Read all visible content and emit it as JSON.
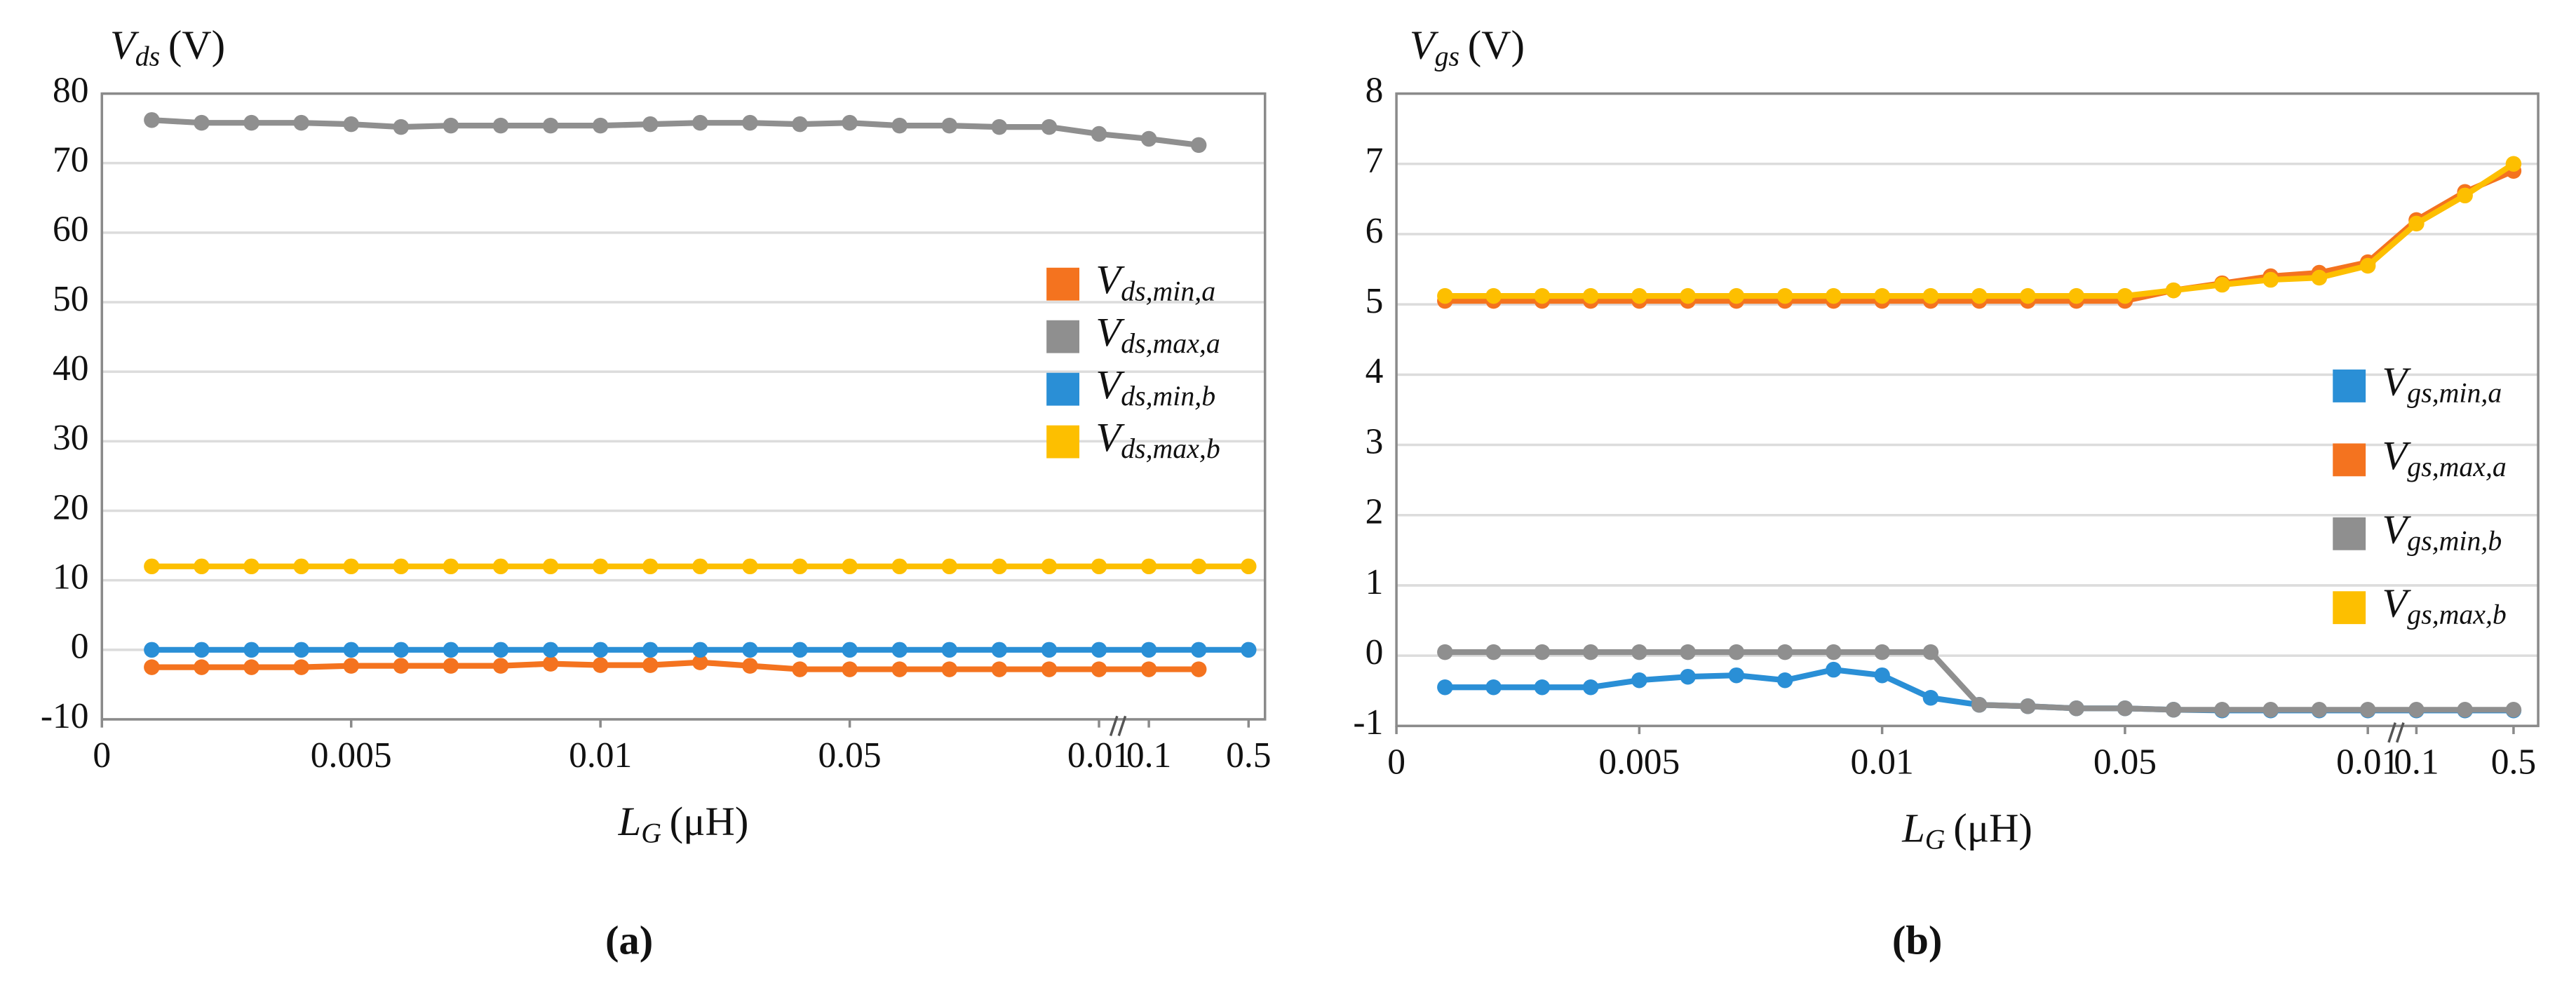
{
  "chart_data": [
    {
      "type": "line",
      "ylabel": {
        "symbol": "V",
        "subscript": "ds",
        "unit": "(V)"
      },
      "xlabel": {
        "symbol": "L",
        "subscript": "G",
        "unit": "(μH)"
      },
      "caption": "(a)",
      "x": [
        1,
        2,
        3,
        4,
        5,
        6,
        7,
        8,
        9,
        10,
        11,
        12,
        13,
        14,
        15,
        16,
        17,
        18,
        19,
        20,
        21,
        22,
        23
      ],
      "xlim": [
        0,
        23
      ],
      "xticks": [
        {
          "value": 0,
          "label": "0"
        },
        {
          "value": 5,
          "label": "0.005"
        },
        {
          "value": 10,
          "label": "0.01"
        },
        {
          "value": 15,
          "label": "0.05"
        },
        {
          "value": 20,
          "label": "0.01"
        },
        {
          "value": 21,
          "label": "0.1"
        },
        {
          "value": 23,
          "label": "0.5"
        }
      ],
      "ylim": [
        -10,
        80
      ],
      "yticks": [
        -10,
        0,
        10,
        20,
        30,
        40,
        50,
        60,
        70,
        80
      ],
      "grid": true,
      "legend": "right",
      "series": [
        {
          "name": "Vds,min,a",
          "color": "#f4731f",
          "values": [
            -2.5,
            -2.5,
            -2.5,
            -2.5,
            -2.3,
            -2.3,
            -2.3,
            -2.3,
            -2.0,
            -2.2,
            -2.2,
            -1.8,
            -2.3,
            -2.8,
            -2.8,
            -2.8,
            -2.8,
            -2.8,
            -2.8,
            -2.8,
            -2.8,
            -2.8,
            null
          ]
        },
        {
          "name": "Vds,max,a",
          "color": "#8f8f8f",
          "values": [
            76.2,
            75.8,
            75.8,
            75.8,
            75.6,
            75.2,
            75.4,
            75.4,
            75.4,
            75.4,
            75.6,
            75.8,
            75.8,
            75.6,
            75.8,
            75.4,
            75.4,
            75.2,
            75.2,
            74.2,
            73.5,
            72.6,
            null
          ]
        },
        {
          "name": "Vds,min,b",
          "color": "#2a8fd6",
          "values": [
            0,
            0,
            0,
            0,
            0,
            0,
            0,
            0,
            0,
            0,
            0,
            0,
            0,
            0,
            0,
            0,
            0,
            0,
            0,
            0,
            0,
            0,
            0
          ]
        },
        {
          "name": "Vds,max,b",
          "color": "#fdbf00",
          "values": [
            12,
            12,
            12,
            12,
            12,
            12,
            12,
            12,
            12,
            12,
            12,
            12,
            12,
            12,
            12,
            12,
            12,
            12,
            12,
            12,
            12,
            12,
            12
          ]
        }
      ]
    },
    {
      "type": "line",
      "ylabel": {
        "symbol": "V",
        "subscript": "gs",
        "unit": "(V)"
      },
      "xlabel": {
        "symbol": "L",
        "subscript": "G",
        "unit": "(μH)"
      },
      "caption": "(b)",
      "x": [
        1,
        2,
        3,
        4,
        5,
        6,
        7,
        8,
        9,
        10,
        11,
        12,
        13,
        14,
        15,
        16,
        17,
        18,
        19,
        20,
        21,
        22,
        23
      ],
      "xlim": [
        0,
        23
      ],
      "xticks": [
        {
          "value": 0,
          "label": "0"
        },
        {
          "value": 5,
          "label": "0.005"
        },
        {
          "value": 10,
          "label": "0.01"
        },
        {
          "value": 15,
          "label": "0.05"
        },
        {
          "value": 20,
          "label": "0.01"
        },
        {
          "value": 21,
          "label": "0.1"
        },
        {
          "value": 23,
          "label": "0.5"
        }
      ],
      "ylim": [
        -1,
        8
      ],
      "yticks": [
        -1,
        0,
        1,
        2,
        3,
        4,
        5,
        6,
        7,
        8
      ],
      "grid": true,
      "legend": "right",
      "series": [
        {
          "name": "Vgs,min,a",
          "color": "#2a8fd6",
          "values": [
            -0.45,
            -0.45,
            -0.45,
            -0.45,
            -0.35,
            -0.3,
            -0.28,
            -0.35,
            -0.2,
            -0.28,
            -0.6,
            -0.7,
            -0.72,
            -0.75,
            -0.75,
            -0.77,
            -0.78,
            -0.78,
            -0.78,
            -0.78,
            -0.78,
            -0.78,
            -0.78
          ]
        },
        {
          "name": "Vgs,max,a",
          "color": "#f4731f",
          "values": [
            5.05,
            5.05,
            5.05,
            5.05,
            5.05,
            5.05,
            5.05,
            5.05,
            5.05,
            5.05,
            5.05,
            5.05,
            5.05,
            5.05,
            5.05,
            5.2,
            5.3,
            5.4,
            5.45,
            5.6,
            6.2,
            6.6,
            6.9
          ]
        },
        {
          "name": "Vgs,min,b",
          "color": "#8f8f8f",
          "values": [
            0.05,
            0.05,
            0.05,
            0.05,
            0.05,
            0.05,
            0.05,
            0.05,
            0.05,
            0.05,
            0.05,
            -0.7,
            -0.72,
            -0.75,
            -0.75,
            -0.77,
            -0.77,
            -0.77,
            -0.77,
            -0.77,
            -0.77,
            -0.77,
            -0.77
          ]
        },
        {
          "name": "Vgs,max,b",
          "color": "#fdbf00",
          "values": [
            5.12,
            5.12,
            5.12,
            5.12,
            5.12,
            5.12,
            5.12,
            5.12,
            5.12,
            5.12,
            5.12,
            5.12,
            5.12,
            5.12,
            5.12,
            5.2,
            5.28,
            5.35,
            5.38,
            5.55,
            6.15,
            6.55,
            7.0
          ]
        }
      ]
    }
  ]
}
